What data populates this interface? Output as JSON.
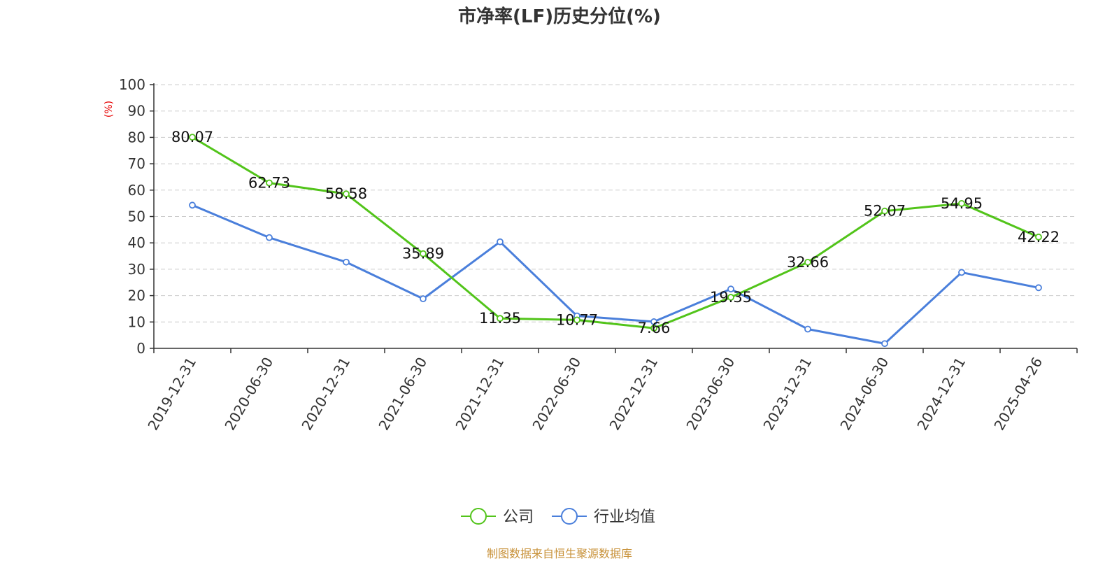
{
  "chart_data": {
    "type": "line",
    "title": "市净率(LF)历史分位(%)",
    "ylabel": "(%)",
    "ylim": [
      0,
      100
    ],
    "yticks": [
      0,
      10,
      20,
      30,
      40,
      50,
      60,
      70,
      80,
      90,
      100
    ],
    "grid": true,
    "legend_position": "bottom",
    "categories": [
      "2019-12-31",
      "2020-06-30",
      "2020-12-31",
      "2021-06-30",
      "2021-12-31",
      "2022-06-30",
      "2022-12-31",
      "2023-06-30",
      "2023-12-31",
      "2024-06-30",
      "2024-12-31",
      "2025-04-26"
    ],
    "series": [
      {
        "name": "公司",
        "color": "#52c41a",
        "values": [
          80.07,
          62.73,
          58.58,
          35.89,
          11.35,
          10.77,
          7.66,
          19.35,
          32.66,
          52.07,
          54.95,
          42.22
        ],
        "labels": [
          "80.07",
          "62.73",
          "58.58",
          "35.89",
          "11.35",
          "10.77",
          "7.66",
          "19.35",
          "32.66",
          "52.07",
          "54.95",
          "42.22"
        ]
      },
      {
        "name": "行业均值",
        "color": "#4a7fdb",
        "values": [
          54.3,
          42.0,
          32.7,
          18.8,
          40.4,
          12.3,
          10.1,
          22.5,
          7.3,
          1.8,
          28.8,
          23.0
        ]
      }
    ]
  },
  "footer": {
    "source": "制图数据来自恒生聚源数据库"
  }
}
